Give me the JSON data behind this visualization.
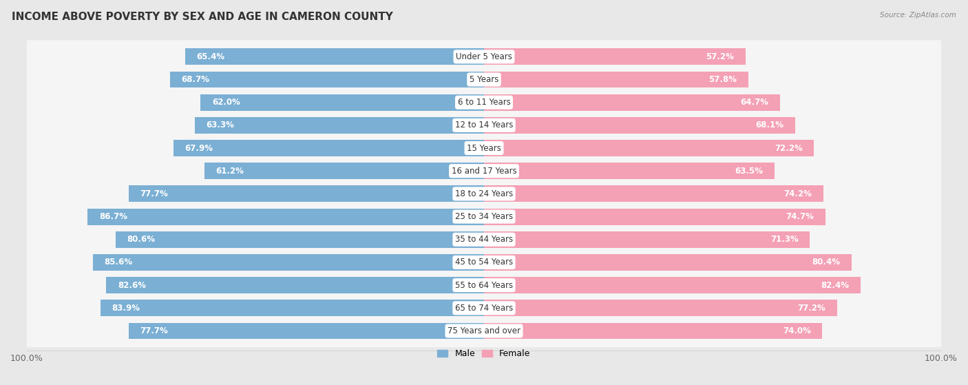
{
  "title": "INCOME ABOVE POVERTY BY SEX AND AGE IN CAMERON COUNTY",
  "source": "Source: ZipAtlas.com",
  "categories": [
    "Under 5 Years",
    "5 Years",
    "6 to 11 Years",
    "12 to 14 Years",
    "15 Years",
    "16 and 17 Years",
    "18 to 24 Years",
    "25 to 34 Years",
    "35 to 44 Years",
    "45 to 54 Years",
    "55 to 64 Years",
    "65 to 74 Years",
    "75 Years and over"
  ],
  "male_values": [
    65.4,
    68.7,
    62.0,
    63.3,
    67.9,
    61.2,
    77.7,
    86.7,
    80.6,
    85.6,
    82.6,
    83.9,
    77.7
  ],
  "female_values": [
    57.2,
    57.8,
    64.7,
    68.1,
    72.2,
    63.5,
    74.2,
    74.7,
    71.3,
    80.4,
    82.4,
    77.2,
    74.0
  ],
  "male_color": "#7bafd4",
  "female_color": "#f4a0b5",
  "background_color": "#e8e8e8",
  "row_bg_color": "#f5f5f5",
  "title_fontsize": 11,
  "label_fontsize": 8.5,
  "value_fontsize": 8.5,
  "legend_male": "Male",
  "legend_female": "Female"
}
